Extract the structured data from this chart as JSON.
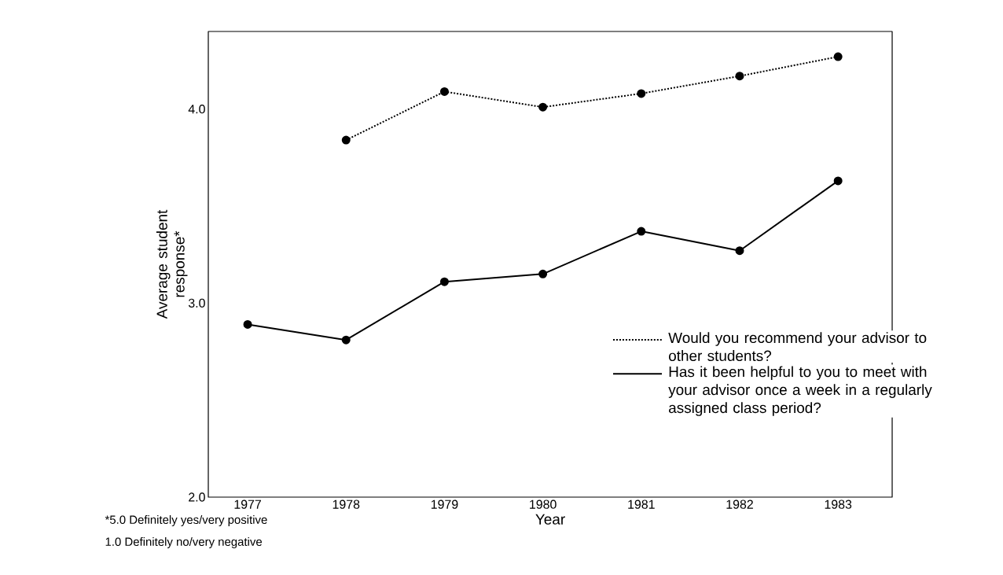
{
  "chart_data": {
    "type": "line",
    "xlabel": "Year",
    "ylabel": "Average student response*",
    "categories": [
      "1977",
      "1978",
      "1979",
      "1980",
      "1981",
      "1982",
      "1983"
    ],
    "series": [
      {
        "name": "Would you recommend your advisor to other students?",
        "color": "#000000",
        "line_style": "dotted",
        "values": [
          null,
          3.84,
          4.09,
          4.01,
          4.08,
          4.17,
          4.27
        ]
      },
      {
        "name": "Has it been helpful to you to meet with your advisor once a week in a regularly assigned class period?",
        "color": "#000000",
        "line_style": "solid",
        "values": [
          2.89,
          2.81,
          3.11,
          3.15,
          3.37,
          3.27,
          3.63
        ]
      }
    ],
    "ylim": [
      2.0,
      4.4
    ],
    "yticks": [
      {
        "value": 2.0,
        "label": "2.0"
      },
      {
        "value": 3.0,
        "label": "3.0"
      },
      {
        "value": 4.0,
        "label": "4.0"
      }
    ],
    "marker": "circle",
    "legend": "right",
    "grid": false,
    "annotations": [
      "*5.0 Definitely yes/very positive",
      "1.0 Definitely no/very negative"
    ]
  }
}
